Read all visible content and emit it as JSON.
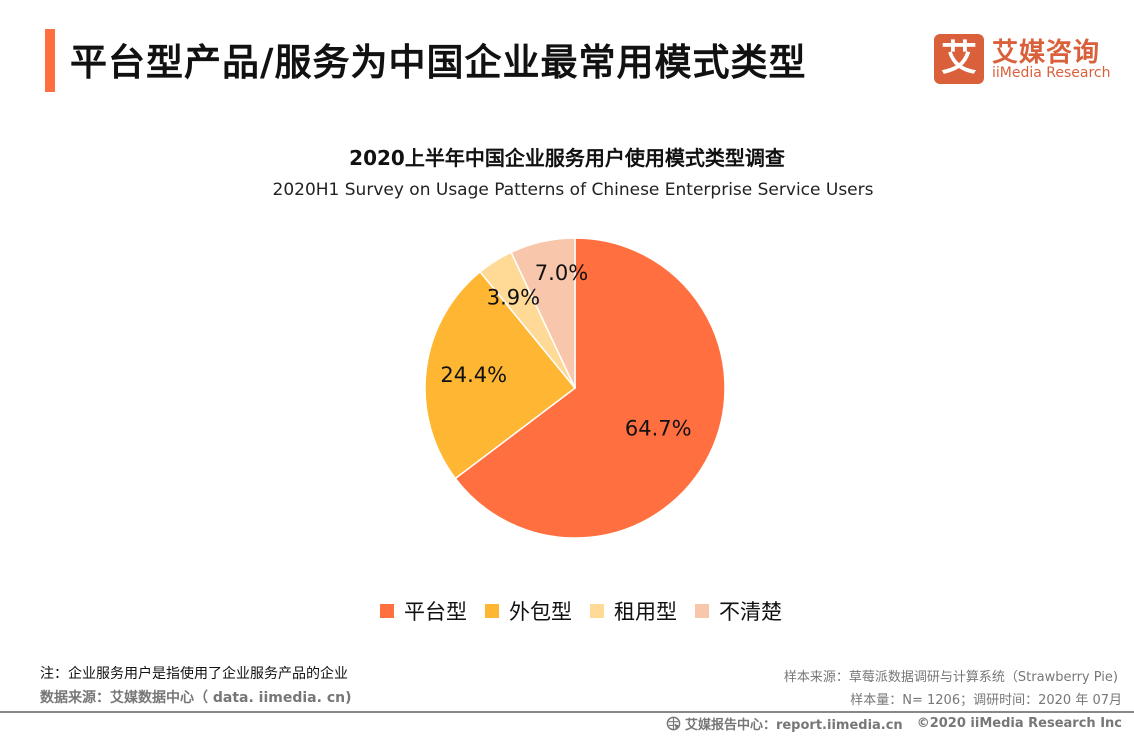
{
  "header": {
    "title": "平台型产品/服务为中国企业最常用模式类型",
    "accent_color": "#FF6F40"
  },
  "logo": {
    "mark": "艾",
    "name_cn": "艾媒咨询",
    "name_en": "iiMedia Research",
    "color": "#D9603B"
  },
  "chart_data": {
    "type": "pie",
    "title": "2020上半年中国企业服务用户使用模式类型调查",
    "subtitle": "2020H1 Survey on Usage Patterns of Chinese Enterprise Service Users",
    "start_angle_deg": 0,
    "direction": "clockwise",
    "legend_position": "bottom",
    "slices": [
      {
        "label": "平台型",
        "value": 64.7,
        "display": "64.7%",
        "color": "#FF6F40"
      },
      {
        "label": "外包型",
        "value": 24.4,
        "display": "24.4%",
        "color": "#FFB733"
      },
      {
        "label": "租用型",
        "value": 3.9,
        "display": "3.9%",
        "color": "#FFDA96"
      },
      {
        "label": "不清楚",
        "value": 7.0,
        "display": "7.0%",
        "color": "#F8C7AB"
      }
    ]
  },
  "footnotes": {
    "note": "注：企业服务用户是指使用了企业服务产品的企业",
    "source": "数据来源：艾媒数据中心（ data. iimedia. cn)",
    "sample_source": "样本来源：草莓派数据调研与计算系统（Strawberry Pie)",
    "sample_size": "样本量：N= 1206；调研时间：2020 年 07月"
  },
  "footer": {
    "icon": "report-center-icon",
    "report_center": "艾媒报告中心：report.iimedia.cn",
    "copyright": "©2020  iiMedia Research  Inc"
  }
}
